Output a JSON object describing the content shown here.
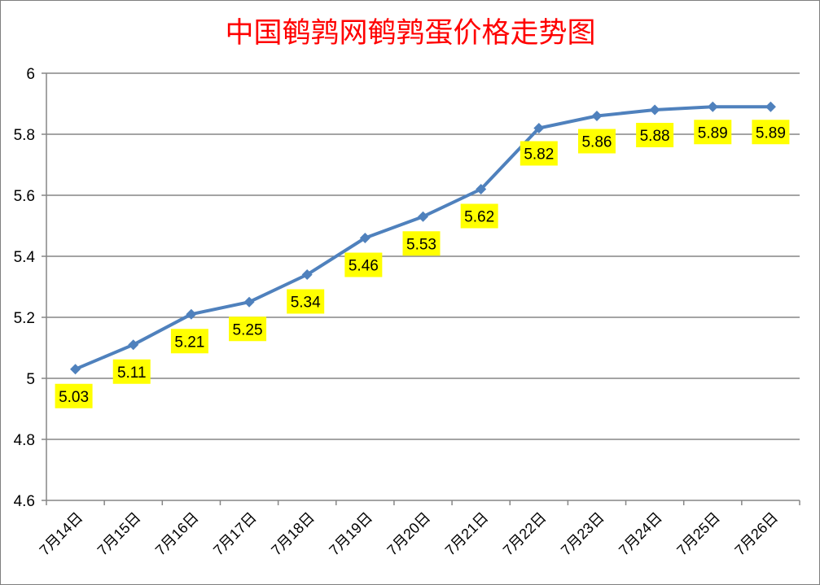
{
  "chart_data": {
    "type": "line",
    "title": "中国鹌鹑网鹌鹑蛋价格走势图",
    "xlabel": "",
    "ylabel": "",
    "categories": [
      "7月14日",
      "7月15日",
      "7月16日",
      "7月17日",
      "7月18日",
      "7月19日",
      "7月20日",
      "7月21日",
      "7月22日",
      "7月23日",
      "7月24日",
      "7月25日",
      "7月26日"
    ],
    "series": [
      {
        "values": [
          5.03,
          5.11,
          5.21,
          5.25,
          5.34,
          5.46,
          5.53,
          5.62,
          5.82,
          5.86,
          5.88,
          5.89,
          5.89
        ]
      }
    ],
    "ylim": [
      4.6,
      6
    ],
    "yticks": [
      "4.6",
      "4.8",
      "5",
      "5.2",
      "5.4",
      "5.6",
      "5.8",
      "6"
    ],
    "data_labels": [
      "5.03",
      "5.11",
      "5.21",
      "5.25",
      "5.34",
      "5.46",
      "5.53",
      "5.62",
      "5.82",
      "5.86",
      "5.88",
      "5.89",
      "5.89"
    ],
    "grid": true,
    "legend": "none",
    "colors": {
      "title": "#ff0000",
      "line": "#4f81bd",
      "label_bg": "#ffff00",
      "gridline": "#868686",
      "text": "#000000"
    }
  }
}
